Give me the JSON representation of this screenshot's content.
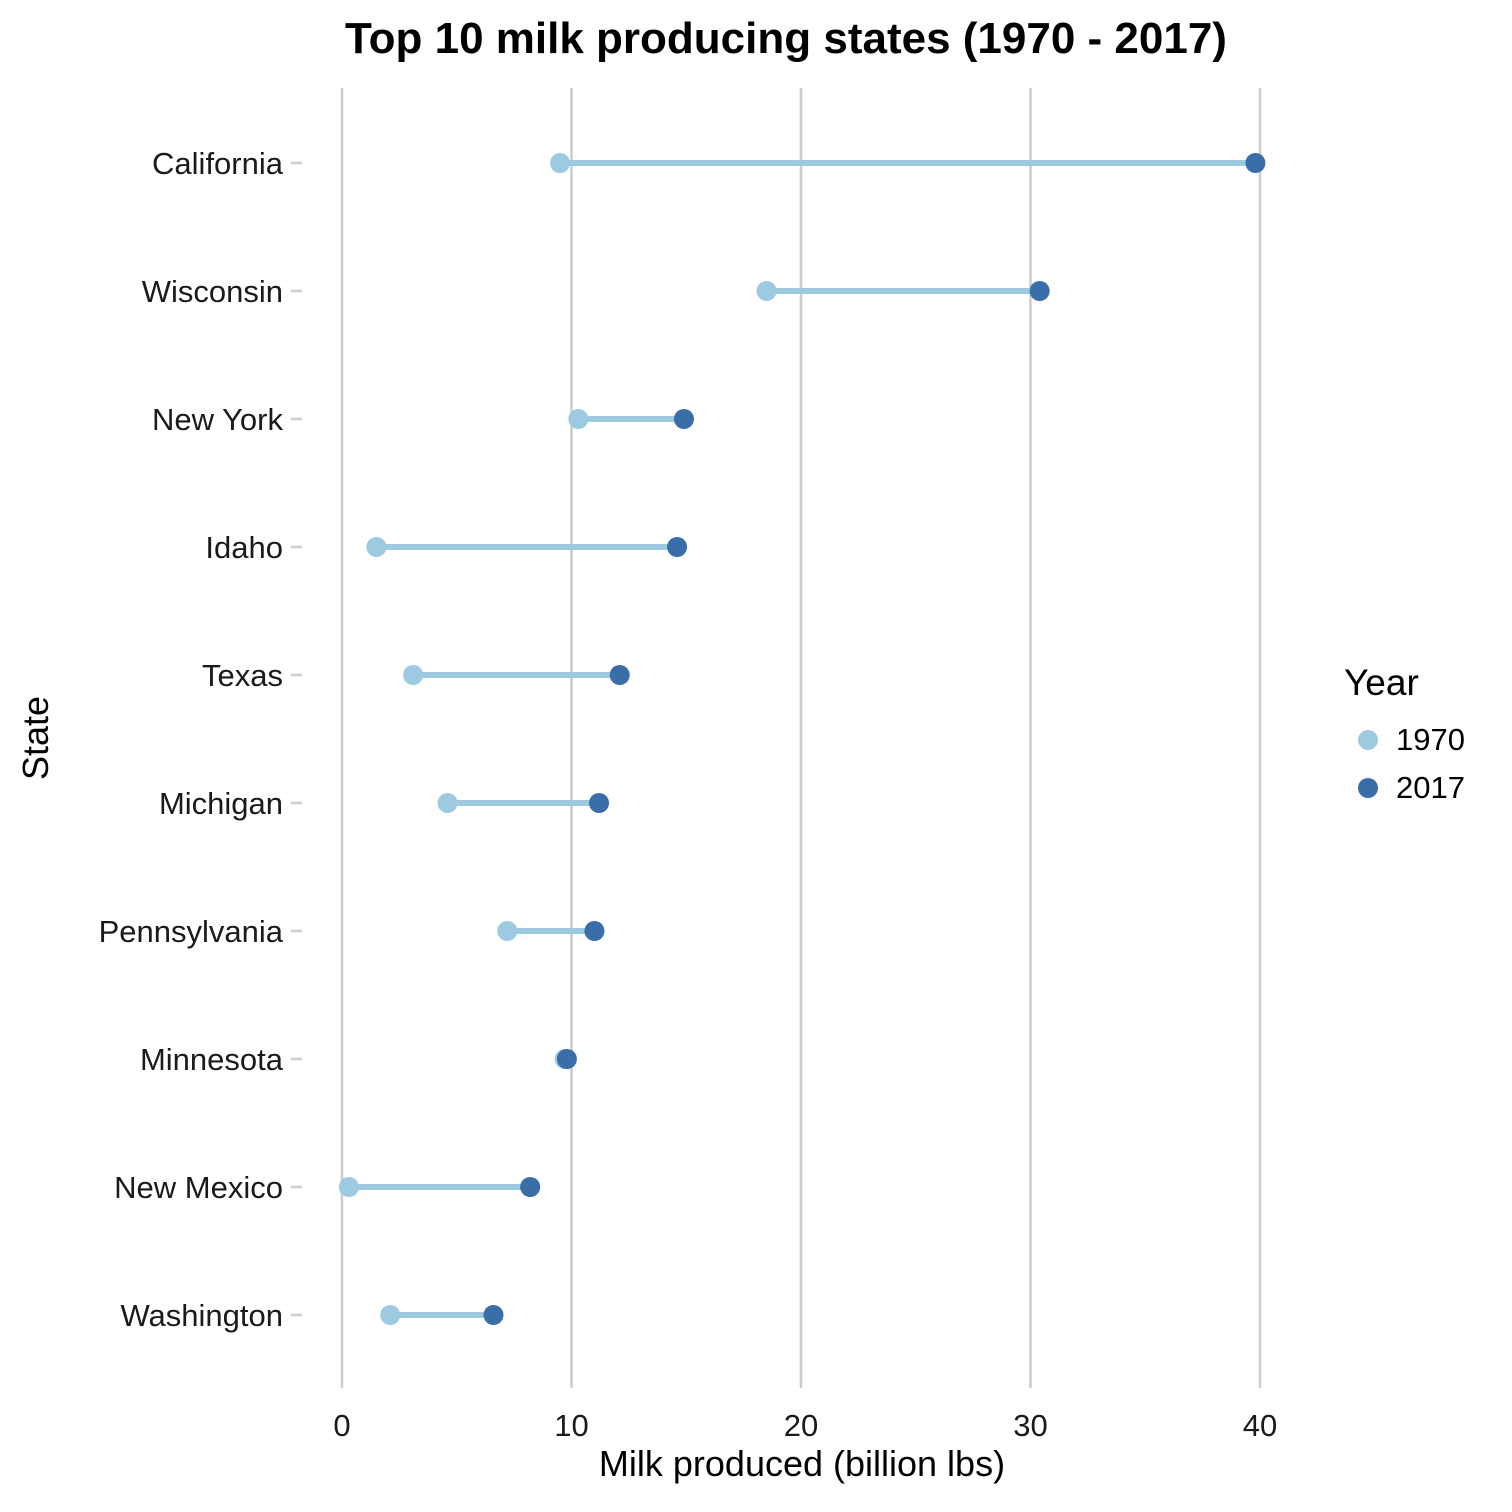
{
  "colors": {
    "y1970": "#9ecae1",
    "y2017": "#3a6ea8",
    "grid": "#cccccc"
  },
  "chart_data": {
    "type": "dumbbell",
    "title": "Top 10 milk producing states (1970 - 2017)",
    "xlabel": "Milk produced (billion lbs)",
    "ylabel": "State",
    "xlim": [
      0,
      40
    ],
    "xticks": [
      "0",
      "10",
      "20",
      "30",
      "40"
    ],
    "grid": "vertical major lines",
    "legend": {
      "title": "Year",
      "position": "right"
    },
    "categories": [
      "California",
      "Wisconsin",
      "New York",
      "Idaho",
      "Texas",
      "Michigan",
      "Pennsylvania",
      "Minnesota",
      "New Mexico",
      "Washington"
    ],
    "series": [
      {
        "name": "1970",
        "values": [
          9.5,
          18.5,
          10.3,
          1.5,
          3.1,
          4.6,
          7.2,
          9.7,
          0.3,
          2.1
        ]
      },
      {
        "name": "2017",
        "values": [
          39.8,
          30.4,
          14.9,
          14.6,
          12.1,
          11.2,
          11.0,
          9.8,
          8.2,
          6.6
        ]
      }
    ]
  }
}
